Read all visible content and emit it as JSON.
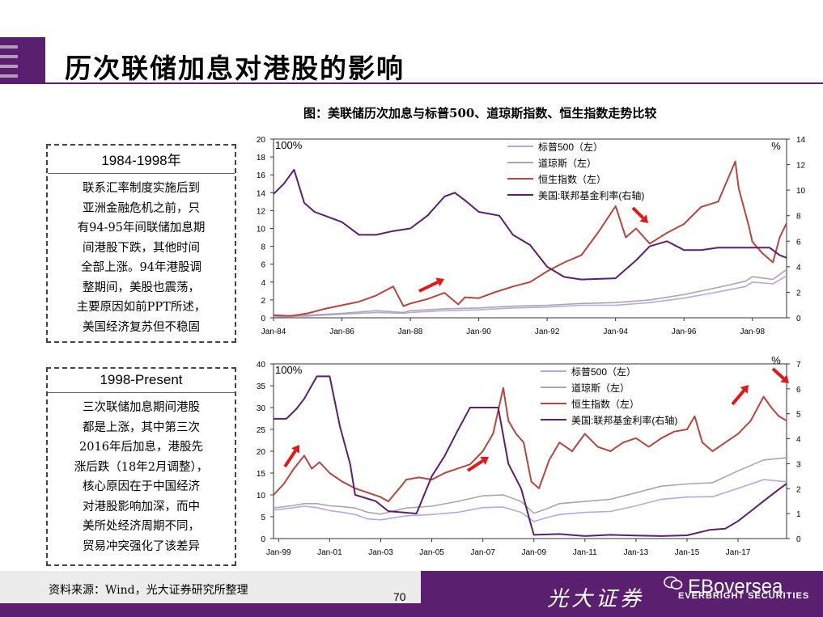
{
  "page": {
    "title": "历次联储加息对港股的影响",
    "figure_title": "图：美联储历次加息与标普500、道琼斯指数、恒生指数走势比较",
    "source": "资料来源：Wind，光大证券研究所整理",
    "page_number": "70",
    "brand_cn": "光大证券",
    "brand_en": "EBoversea",
    "brand_en_sub": "EVERBRIGHT SECURITIES"
  },
  "boxes": [
    {
      "head": "1984-1998年",
      "lines": [
        "联系汇率制度实施后到",
        "亚洲金融危机之前，只",
        "有94-95年间联储加息期",
        "间港股下跌，其他时间",
        "全部上涨。94年港股调",
        "整期间，美股也震荡，",
        "主要原因如前PPT所述，",
        "美国经济复苏但不稳固"
      ]
    },
    {
      "head": "1998-Present",
      "lines": [
        "三次联储加息期间港股",
        "都是上涨，其中第三次",
        "2016年后加息，港股先",
        "涨后跌（18年2月调整），",
        "核心原因在于中国经济",
        "对港股影响加深，而中",
        "美所处经济周期不同，",
        "贸易冲突强化了该差异"
      ]
    }
  ],
  "colors": {
    "sp500": "#b9a6e0",
    "dow": "#a8a8a8",
    "hsi": "#b4473f",
    "fed": "#5a1f6e",
    "arrow": "#e0191b",
    "brand": "#5a1f6e"
  },
  "chart_data": [
    {
      "type": "line",
      "x_ticks": [
        "Jan-84",
        "Jan-86",
        "Jan-88",
        "Jan-90",
        "Jan-92",
        "Jan-94",
        "Jan-96",
        "Jan-98"
      ],
      "x_range": [
        1984.0,
        1999.0
      ],
      "y_left": {
        "ticks": [
          "0",
          "2",
          "4",
          "6",
          "8",
          "10",
          "12",
          "14",
          "16",
          "18",
          "20"
        ],
        "range": [
          0,
          20
        ],
        "unit": "100%"
      },
      "y_right": {
        "ticks": [
          "0",
          "2",
          "4",
          "6",
          "8",
          "10",
          "12",
          "14"
        ],
        "range": [
          0,
          14
        ],
        "unit": "%"
      },
      "legend": [
        "标普500（左）",
        "道琼斯（左）",
        "恒生指数（左）",
        "美国:联邦基金利率(右轴)"
      ],
      "series": [
        {
          "name": "标普500（左）",
          "axis": "left",
          "color_key": "sp500",
          "x": [
            1984,
            1985,
            1986,
            1987,
            1987.8,
            1988,
            1989,
            1990,
            1991,
            1992,
            1993,
            1994,
            1995,
            1996,
            1997,
            1997.8,
            1998,
            1998.6,
            1999
          ],
          "y": [
            0.1,
            0.2,
            0.4,
            0.6,
            0.5,
            0.6,
            0.8,
            0.9,
            1.1,
            1.2,
            1.4,
            1.4,
            1.7,
            2.2,
            2.9,
            3.5,
            4.0,
            3.8,
            4.7
          ]
        },
        {
          "name": "道琼斯（左）",
          "axis": "left",
          "color_key": "dow",
          "x": [
            1984,
            1985,
            1986,
            1987,
            1987.8,
            1988,
            1989,
            1990,
            1991,
            1992,
            1993,
            1994,
            1995,
            1996,
            1997,
            1997.8,
            1998,
            1998.6,
            1999
          ],
          "y": [
            0.2,
            0.3,
            0.5,
            0.8,
            0.6,
            0.8,
            1.0,
            1.1,
            1.3,
            1.4,
            1.6,
            1.7,
            2.0,
            2.6,
            3.4,
            4.1,
            4.6,
            4.3,
            5.4
          ]
        },
        {
          "name": "恒生指数（左）",
          "axis": "left",
          "color_key": "hsi",
          "x": [
            1984,
            1984.5,
            1985,
            1985.5,
            1986,
            1986.5,
            1987,
            1987.5,
            1987.8,
            1988,
            1988.5,
            1989,
            1989.4,
            1989.6,
            1990,
            1990.5,
            1991,
            1991.5,
            1992,
            1992.5,
            1993,
            1993.5,
            1994,
            1994.3,
            1994.6,
            1995,
            1995.5,
            1996,
            1996.5,
            1997,
            1997.5,
            1997.6,
            1997.9,
            1998,
            1998.3,
            1998.6,
            1998.8,
            1999
          ],
          "y": [
            0.3,
            0.2,
            0.5,
            1.0,
            1.4,
            1.8,
            2.5,
            3.5,
            1.3,
            1.6,
            2.1,
            2.8,
            1.5,
            2.3,
            2.2,
            2.9,
            3.5,
            4.0,
            5.2,
            6.2,
            7.0,
            9.6,
            12.5,
            9.0,
            10.0,
            8.3,
            9.5,
            10.5,
            12.4,
            13.0,
            17.5,
            14.5,
            10.2,
            8.5,
            7.2,
            6.2,
            9.0,
            10.6
          ]
        },
        {
          "name": "美国:联邦基金利率(右轴)",
          "axis": "right",
          "color_key": "fed",
          "x": [
            1984,
            1984.3,
            1984.6,
            1984.9,
            1985.2,
            1985.6,
            1986,
            1986.5,
            1987,
            1987.5,
            1988,
            1988.5,
            1989,
            1989.3,
            1989.6,
            1990,
            1990.6,
            1991,
            1991.5,
            1992,
            1992.5,
            1993,
            1994,
            1994.3,
            1994.6,
            1995,
            1995.5,
            1996,
            1996.5,
            1997,
            1997.5,
            1998,
            1998.5,
            1998.8,
            1999
          ],
          "y": [
            9.7,
            10.5,
            11.6,
            9.0,
            8.3,
            7.9,
            7.5,
            6.5,
            6.5,
            6.8,
            7.0,
            8.0,
            9.5,
            9.8,
            9.2,
            8.3,
            8.0,
            6.5,
            5.7,
            4.0,
            3.2,
            3.0,
            3.1,
            3.8,
            4.5,
            5.6,
            6.0,
            5.3,
            5.3,
            5.5,
            5.5,
            5.5,
            5.5,
            4.9,
            4.7
          ]
        }
      ]
    },
    {
      "type": "line",
      "x_ticks": [
        "Jan-99",
        "Jan-01",
        "Jan-03",
        "Jan-05",
        "Jan-07",
        "Jan-09",
        "Jan-11",
        "Jan-13",
        "Jan-15",
        "Jan-17"
      ],
      "x_range": [
        1998.8,
        2018.9
      ],
      "y_left": {
        "ticks": [
          "0",
          "5",
          "10",
          "15",
          "20",
          "25",
          "30",
          "35",
          "40"
        ],
        "range": [
          0,
          40
        ],
        "unit": "100%"
      },
      "y_right": {
        "ticks": [
          "0",
          "1",
          "2",
          "3",
          "4",
          "5",
          "6",
          "7"
        ],
        "range": [
          0,
          7
        ],
        "unit": "%"
      },
      "legend": [
        "标普500（左）",
        "道琼斯（左）",
        "恒生指数（左）",
        "美国:联邦基金利率(右轴)"
      ],
      "series": [
        {
          "name": "标普500（左）",
          "axis": "left",
          "color_key": "sp500",
          "x": [
            1998.8,
            1999.5,
            2000,
            2000.5,
            2001,
            2001.5,
            2002,
            2002.5,
            2003,
            2004,
            2005,
            2006,
            2007,
            2007.8,
            2008.5,
            2009,
            2009.5,
            2010,
            2011,
            2012,
            2013,
            2014,
            2015,
            2016,
            2017,
            2018,
            2018.9
          ],
          "y": [
            6.5,
            7.0,
            7.4,
            7.1,
            6.4,
            6.0,
            5.5,
            4.5,
            4.3,
            5.2,
            5.5,
            6.0,
            7.1,
            7.2,
            6.0,
            3.9,
            4.8,
            5.5,
            6.0,
            6.2,
            7.5,
            9.0,
            9.5,
            9.6,
            11.5,
            13.5,
            13.0
          ]
        },
        {
          "name": "道琼斯（左）",
          "axis": "left",
          "color_key": "dow",
          "x": [
            1998.8,
            1999.5,
            2000,
            2000.5,
            2001,
            2001.5,
            2002,
            2002.5,
            2003,
            2004,
            2005,
            2006,
            2007,
            2007.8,
            2008.5,
            2009,
            2009.5,
            2010,
            2011,
            2012,
            2013,
            2014,
            2015,
            2016,
            2017,
            2018,
            2018.9
          ],
          "y": [
            7.0,
            7.5,
            8.0,
            8.0,
            7.5,
            7.3,
            7.0,
            6.0,
            5.6,
            7.0,
            7.4,
            8.5,
            9.8,
            10.0,
            8.5,
            5.8,
            6.8,
            8.0,
            8.5,
            9.0,
            10.5,
            12.0,
            12.5,
            12.8,
            15.5,
            18.0,
            18.5
          ]
        },
        {
          "name": "恒生指数（左）",
          "axis": "left",
          "color_key": "hsi",
          "x": [
            1998.8,
            1999.2,
            1999.6,
            2000,
            2000.3,
            2000.6,
            2001,
            2001.5,
            2002,
            2002.5,
            2003,
            2003.3,
            2003.8,
            2004,
            2004.5,
            2005,
            2005.5,
            2006,
            2006.5,
            2007,
            2007.4,
            2007.8,
            2008,
            2008.3,
            2008.6,
            2008.9,
            2009.2,
            2009.6,
            2010,
            2010.5,
            2011,
            2011.5,
            2012,
            2012.5,
            2013,
            2013.5,
            2014,
            2014.5,
            2015,
            2015.3,
            2015.6,
            2016,
            2016.5,
            2017,
            2017.5,
            2018,
            2018.3,
            2018.6,
            2018.9
          ],
          "y": [
            10.0,
            12.5,
            16.0,
            19.0,
            16.0,
            17.5,
            15.0,
            13.0,
            11.5,
            10.5,
            9.5,
            8.5,
            12.0,
            13.5,
            14.0,
            13.5,
            15.0,
            16.0,
            17.0,
            20.0,
            24.0,
            34.5,
            27.0,
            24.0,
            22.0,
            13.0,
            11.5,
            18.0,
            22.0,
            20.0,
            24.0,
            21.0,
            20.0,
            22.0,
            23.0,
            21.0,
            23.0,
            24.5,
            25.0,
            28.0,
            22.0,
            20.0,
            22.0,
            24.0,
            27.0,
            32.5,
            30.0,
            28.0,
            27.0
          ]
        },
        {
          "name": "美国:联邦基金利率(右轴)",
          "axis": "right",
          "color_key": "fed",
          "x": [
            1998.8,
            1999.3,
            1999.7,
            2000,
            2000.5,
            2001,
            2001.4,
            2001.8,
            2002,
            2002.8,
            2003.3,
            2004.4,
            2005,
            2005.5,
            2006,
            2006.5,
            2007,
            2007.6,
            2008,
            2008.5,
            2008.9,
            2009,
            2010,
            2011,
            2012,
            2013,
            2014,
            2015,
            2015.9,
            2016.5,
            2017,
            2017.5,
            2018,
            2018.5,
            2018.9
          ],
          "y": [
            4.8,
            4.8,
            5.2,
            5.6,
            6.5,
            6.5,
            4.5,
            3.0,
            1.75,
            1.5,
            1.1,
            1.0,
            2.5,
            3.3,
            4.3,
            5.25,
            5.25,
            5.25,
            3.0,
            2.0,
            0.5,
            0.15,
            0.18,
            0.1,
            0.15,
            0.12,
            0.1,
            0.13,
            0.35,
            0.4,
            0.7,
            1.1,
            1.5,
            1.9,
            2.2
          ]
        }
      ]
    }
  ]
}
